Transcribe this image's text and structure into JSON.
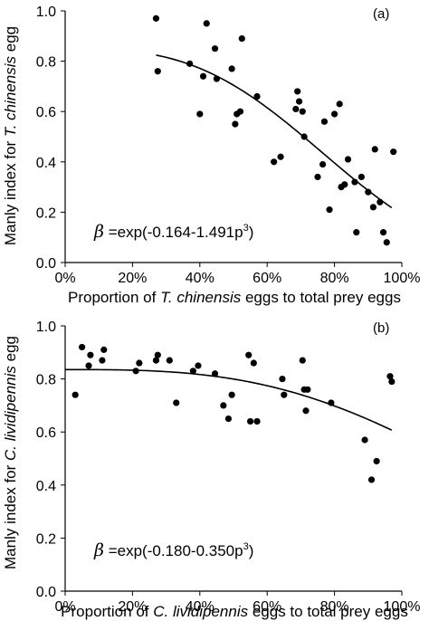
{
  "chart_data": [
    {
      "type": "scatter",
      "panel_label": "(a)",
      "ylabel": {
        "prefix": "Manly index for ",
        "italic": "T. chinensis",
        "suffix": " egg"
      },
      "xlabel": {
        "prefix": "Proportion of ",
        "italic": "T. chinensis",
        "suffix": " eggs to total prey eggs"
      },
      "equation": {
        "beta": "β",
        "text": " =exp(-0.164-1.491p",
        "sup": "3",
        "close": ")"
      },
      "xlim": [
        0,
        100
      ],
      "ylim": [
        0,
        1.0
      ],
      "xticks": [
        "0%",
        "20%",
        "40%",
        "60%",
        "80%",
        "100%"
      ],
      "yticks": [
        "0.0",
        "0.2",
        "0.4",
        "0.6",
        "0.8",
        "1.0"
      ],
      "fit": {
        "a": -0.164,
        "b": -1.491,
        "x_range": [
          27,
          97
        ]
      },
      "points": [
        {
          "x": 27,
          "y": 0.97
        },
        {
          "x": 27.5,
          "y": 0.76
        },
        {
          "x": 37,
          "y": 0.79
        },
        {
          "x": 40,
          "y": 0.59
        },
        {
          "x": 41,
          "y": 0.74
        },
        {
          "x": 42,
          "y": 0.95
        },
        {
          "x": 44.5,
          "y": 0.85
        },
        {
          "x": 45,
          "y": 0.73
        },
        {
          "x": 49.5,
          "y": 0.77
        },
        {
          "x": 50.5,
          "y": 0.55
        },
        {
          "x": 51,
          "y": 0.59
        },
        {
          "x": 52,
          "y": 0.6
        },
        {
          "x": 52.5,
          "y": 0.89
        },
        {
          "x": 57,
          "y": 0.66
        },
        {
          "x": 62,
          "y": 0.4
        },
        {
          "x": 64,
          "y": 0.42
        },
        {
          "x": 68.5,
          "y": 0.61
        },
        {
          "x": 69,
          "y": 0.68
        },
        {
          "x": 69.5,
          "y": 0.64
        },
        {
          "x": 70.5,
          "y": 0.6
        },
        {
          "x": 71,
          "y": 0.5
        },
        {
          "x": 75,
          "y": 0.34
        },
        {
          "x": 76.5,
          "y": 0.39
        },
        {
          "x": 77,
          "y": 0.56
        },
        {
          "x": 78.5,
          "y": 0.21
        },
        {
          "x": 80,
          "y": 0.59
        },
        {
          "x": 81.5,
          "y": 0.63
        },
        {
          "x": 82,
          "y": 0.3
        },
        {
          "x": 83,
          "y": 0.31
        },
        {
          "x": 84,
          "y": 0.41
        },
        {
          "x": 86,
          "y": 0.32
        },
        {
          "x": 86.5,
          "y": 0.12
        },
        {
          "x": 88,
          "y": 0.34
        },
        {
          "x": 90,
          "y": 0.28
        },
        {
          "x": 91.5,
          "y": 0.22
        },
        {
          "x": 92,
          "y": 0.45
        },
        {
          "x": 93.5,
          "y": 0.24
        },
        {
          "x": 94.5,
          "y": 0.12
        },
        {
          "x": 95.5,
          "y": 0.08
        },
        {
          "x": 97.5,
          "y": 0.44
        }
      ]
    },
    {
      "type": "scatter",
      "panel_label": "(b)",
      "ylabel": {
        "prefix": "Manly index for ",
        "italic": "C. lividipennis",
        "suffix": " egg"
      },
      "xlabel": {
        "prefix": "Proportion of ",
        "italic": "C. lividipennis",
        "suffix": " eggs to total prey eggs"
      },
      "equation": {
        "beta": "β",
        "text": " =exp(-0.180-0.350p",
        "sup": "3",
        "close": ")"
      },
      "xlim": [
        0,
        100
      ],
      "ylim": [
        0,
        1.0
      ],
      "xticks": [
        "0%",
        "20%",
        "40%",
        "60%",
        "80%",
        "100%"
      ],
      "yticks": [
        "0.0",
        "0.2",
        "0.4",
        "0.6",
        "0.8",
        "1.0"
      ],
      "fit": {
        "a": -0.18,
        "b": -0.35,
        "x_range": [
          0,
          97
        ]
      },
      "points": [
        {
          "x": 3,
          "y": 0.74
        },
        {
          "x": 5,
          "y": 0.92
        },
        {
          "x": 7,
          "y": 0.85
        },
        {
          "x": 7.5,
          "y": 0.89
        },
        {
          "x": 11,
          "y": 0.87
        },
        {
          "x": 11.5,
          "y": 0.91
        },
        {
          "x": 21,
          "y": 0.83
        },
        {
          "x": 22,
          "y": 0.86
        },
        {
          "x": 27,
          "y": 0.87
        },
        {
          "x": 27.5,
          "y": 0.89
        },
        {
          "x": 31,
          "y": 0.87
        },
        {
          "x": 33,
          "y": 0.71
        },
        {
          "x": 38,
          "y": 0.83
        },
        {
          "x": 39.5,
          "y": 0.85
        },
        {
          "x": 44.5,
          "y": 0.82
        },
        {
          "x": 47,
          "y": 0.7
        },
        {
          "x": 48.5,
          "y": 0.65
        },
        {
          "x": 49.5,
          "y": 0.74
        },
        {
          "x": 54.5,
          "y": 0.89
        },
        {
          "x": 55,
          "y": 0.64
        },
        {
          "x": 56,
          "y": 0.86
        },
        {
          "x": 57,
          "y": 0.64
        },
        {
          "x": 64.5,
          "y": 0.8
        },
        {
          "x": 65,
          "y": 0.74
        },
        {
          "x": 70.5,
          "y": 0.87
        },
        {
          "x": 71,
          "y": 0.76
        },
        {
          "x": 71.5,
          "y": 0.68
        },
        {
          "x": 72,
          "y": 0.76
        },
        {
          "x": 79,
          "y": 0.71
        },
        {
          "x": 89,
          "y": 0.57
        },
        {
          "x": 91,
          "y": 0.42
        },
        {
          "x": 92.5,
          "y": 0.49
        },
        {
          "x": 96.5,
          "y": 0.81
        },
        {
          "x": 97,
          "y": 0.79
        }
      ]
    }
  ]
}
